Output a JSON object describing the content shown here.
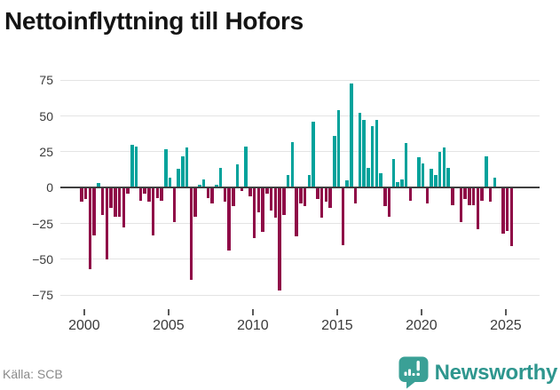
{
  "title": "Nettoinflyttning till Hofors",
  "source": "Källa: SCB",
  "logo": {
    "text": "Newsworthy"
  },
  "chart_data": {
    "type": "bar",
    "title": "Nettoinflyttning till Hofors",
    "xlabel": "",
    "ylabel": "",
    "source": "Källa: SCB",
    "period": "quarterly",
    "start_period": "2000 Q1",
    "end_period": "2025 Q3",
    "ylim": [
      -80,
      80
    ],
    "y_ticks": [
      75,
      50,
      25,
      0,
      -25,
      -50,
      -75
    ],
    "x_ticks": [
      2000,
      2005,
      2010,
      2015,
      2020,
      2025
    ],
    "grid": true,
    "legend": false,
    "colors": {
      "positive": "#00a29b",
      "negative": "#8f0a47"
    },
    "values": [
      -10,
      -8,
      -57,
      -33,
      3,
      -19,
      -50,
      -14,
      -20,
      -20,
      -28,
      -4,
      30,
      29,
      -9,
      -4,
      -10,
      -33,
      -7,
      -9,
      27,
      7,
      -24,
      13,
      22,
      28,
      -64,
      -20,
      2,
      6,
      -7,
      -11,
      2,
      14,
      -10,
      -44,
      -13,
      16,
      -2,
      29,
      -6,
      -35,
      -17,
      -31,
      -4,
      -16,
      -21,
      -72,
      -19,
      9,
      32,
      -34,
      -11,
      -13,
      9,
      46,
      -8,
      -21,
      -10,
      -14,
      36,
      54,
      -40,
      5,
      73,
      -11,
      52,
      47,
      14,
      43,
      47,
      10,
      -13,
      -20,
      20,
      4,
      6,
      31,
      -9,
      0,
      21,
      17,
      -11,
      13,
      9,
      25,
      28,
      14,
      -12,
      0,
      -24,
      -8,
      -12,
      -12,
      -29,
      -9,
      22,
      -10,
      7,
      0,
      -32,
      -30,
      -41
    ]
  }
}
